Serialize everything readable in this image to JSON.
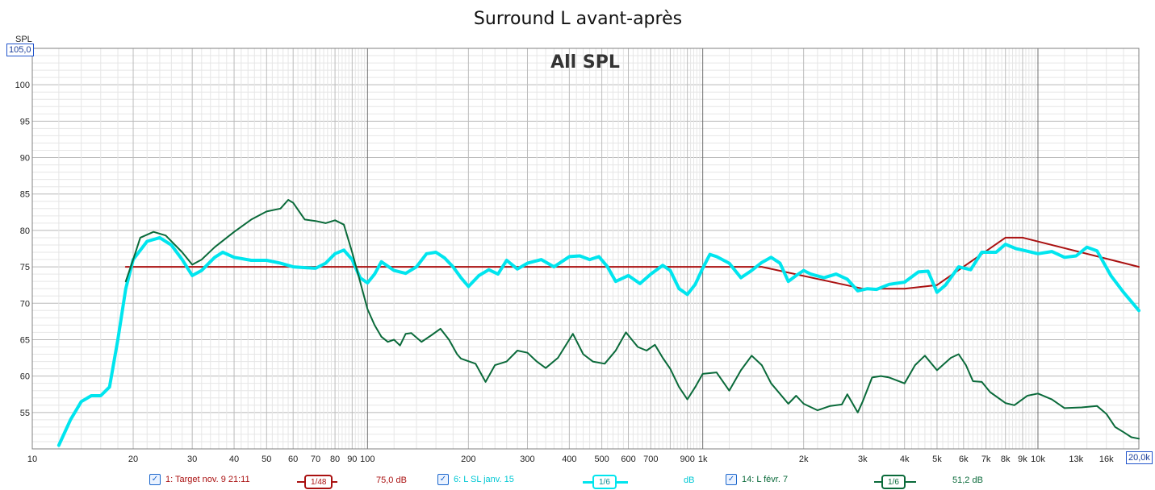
{
  "chart_data": {
    "type": "line",
    "title": "Surround L avant-après",
    "watermark": "All SPL",
    "ylabel": "SPL",
    "ylim": [
      50,
      105
    ],
    "xlim": [
      10,
      20000
    ],
    "xscale": "log",
    "y_top_label": "105,0",
    "x_end_label": "20,0k",
    "y_ticks": [
      {
        "value": 100,
        "label": "100"
      },
      {
        "value": 95,
        "label": "95"
      },
      {
        "value": 90,
        "label": "90"
      },
      {
        "value": 85,
        "label": "85"
      },
      {
        "value": 80,
        "label": "80"
      },
      {
        "value": 75,
        "label": "75"
      },
      {
        "value": 70,
        "label": "70"
      },
      {
        "value": 65,
        "label": "65"
      },
      {
        "value": 60,
        "label": "60"
      },
      {
        "value": 55,
        "label": "55"
      }
    ],
    "x_ticks": [
      {
        "value": 10,
        "label": "10"
      },
      {
        "value": 20,
        "label": "20"
      },
      {
        "value": 30,
        "label": "30"
      },
      {
        "value": 40,
        "label": "40"
      },
      {
        "value": 50,
        "label": "50"
      },
      {
        "value": 60,
        "label": "60"
      },
      {
        "value": 70,
        "label": "70"
      },
      {
        "value": 80,
        "label": "80"
      },
      {
        "value": 90,
        "label": "90"
      },
      {
        "value": 100,
        "label": "100"
      },
      {
        "value": 200,
        "label": "200"
      },
      {
        "value": 300,
        "label": "300"
      },
      {
        "value": 400,
        "label": "400"
      },
      {
        "value": 500,
        "label": "500"
      },
      {
        "value": 600,
        "label": "600"
      },
      {
        "value": 700,
        "label": "700"
      },
      {
        "value": 900,
        "label": "900"
      },
      {
        "value": 1000,
        "label": "1k"
      },
      {
        "value": 2000,
        "label": "2k"
      },
      {
        "value": 3000,
        "label": "3k"
      },
      {
        "value": 4000,
        "label": "4k"
      },
      {
        "value": 5000,
        "label": "5k"
      },
      {
        "value": 6000,
        "label": "6k"
      },
      {
        "value": 7000,
        "label": "7k"
      },
      {
        "value": 8000,
        "label": "8k"
      },
      {
        "value": 9000,
        "label": "9k"
      },
      {
        "value": 10000,
        "label": "10k"
      },
      {
        "value": 13000,
        "label": "13k"
      },
      {
        "value": 16000,
        "label": "16k"
      }
    ],
    "grid": true,
    "series": [
      {
        "name": "1: Target nov. 9 21:11",
        "color": "#aa1111",
        "smoothing": "1/48",
        "offset": "75,0 dB",
        "points": [
          [
            19,
            75
          ],
          [
            100,
            75
          ],
          [
            1500,
            75
          ],
          [
            3000,
            72
          ],
          [
            4000,
            72
          ],
          [
            5000,
            72.5
          ],
          [
            8000,
            79
          ],
          [
            9000,
            79
          ],
          [
            20000,
            75
          ]
        ]
      },
      {
        "name": "6: L SL janv. 15",
        "color": "#00e5ee",
        "smoothing": "1/6",
        "offset": "dB",
        "points": [
          [
            12,
            50.5
          ],
          [
            13,
            54
          ],
          [
            14,
            56.5
          ],
          [
            15,
            57.3
          ],
          [
            16,
            57.3
          ],
          [
            17,
            58.5
          ],
          [
            18,
            65
          ],
          [
            19,
            72
          ],
          [
            20,
            76
          ],
          [
            22,
            78.5
          ],
          [
            24,
            79
          ],
          [
            26,
            78
          ],
          [
            28,
            76
          ],
          [
            30,
            73.8
          ],
          [
            32,
            74.5
          ],
          [
            35,
            76.3
          ],
          [
            37,
            77
          ],
          [
            40,
            76.3
          ],
          [
            45,
            75.9
          ],
          [
            50,
            75.9
          ],
          [
            55,
            75.5
          ],
          [
            60,
            75
          ],
          [
            70,
            74.8
          ],
          [
            75,
            75.5
          ],
          [
            80,
            76.8
          ],
          [
            85,
            77.3
          ],
          [
            90,
            76
          ],
          [
            95,
            73.5
          ],
          [
            100,
            72.8
          ],
          [
            105,
            74
          ],
          [
            110,
            75.7
          ],
          [
            120,
            74.5
          ],
          [
            130,
            74.1
          ],
          [
            140,
            75
          ],
          [
            150,
            76.8
          ],
          [
            160,
            77
          ],
          [
            170,
            76.2
          ],
          [
            180,
            75
          ],
          [
            190,
            73.5
          ],
          [
            200,
            72.3
          ],
          [
            215,
            73.8
          ],
          [
            230,
            74.6
          ],
          [
            245,
            74
          ],
          [
            260,
            75.9
          ],
          [
            280,
            74.7
          ],
          [
            300,
            75.5
          ],
          [
            330,
            76
          ],
          [
            360,
            75
          ],
          [
            400,
            76.4
          ],
          [
            430,
            76.5
          ],
          [
            460,
            76
          ],
          [
            490,
            76.4
          ],
          [
            520,
            75
          ],
          [
            550,
            73
          ],
          [
            600,
            73.8
          ],
          [
            650,
            72.7
          ],
          [
            700,
            74
          ],
          [
            760,
            75.2
          ],
          [
            800,
            74.5
          ],
          [
            850,
            72
          ],
          [
            900,
            71.2
          ],
          [
            950,
            72.6
          ],
          [
            1000,
            74.8
          ],
          [
            1050,
            76.7
          ],
          [
            1100,
            76.4
          ],
          [
            1200,
            75.5
          ],
          [
            1300,
            73.5
          ],
          [
            1400,
            74.5
          ],
          [
            1500,
            75.6
          ],
          [
            1600,
            76.3
          ],
          [
            1700,
            75.5
          ],
          [
            1800,
            73
          ],
          [
            1900,
            73.8
          ],
          [
            2000,
            74.5
          ],
          [
            2100,
            74
          ],
          [
            2300,
            73.5
          ],
          [
            2500,
            74
          ],
          [
            2700,
            73.3
          ],
          [
            2900,
            71.7
          ],
          [
            3100,
            72
          ],
          [
            3300,
            71.9
          ],
          [
            3600,
            72.6
          ],
          [
            4000,
            72.9
          ],
          [
            4400,
            74.3
          ],
          [
            4700,
            74.4
          ],
          [
            5000,
            71.5
          ],
          [
            5300,
            72.5
          ],
          [
            5800,
            75
          ],
          [
            6300,
            74.6
          ],
          [
            6800,
            77
          ],
          [
            7500,
            77
          ],
          [
            8000,
            78.1
          ],
          [
            8600,
            77.5
          ],
          [
            9000,
            77.3
          ],
          [
            10000,
            76.8
          ],
          [
            11000,
            77.1
          ],
          [
            12000,
            76.3
          ],
          [
            13000,
            76.5
          ],
          [
            14000,
            77.7
          ],
          [
            15000,
            77.2
          ],
          [
            16500,
            73.8
          ],
          [
            18000,
            71.5
          ],
          [
            20000,
            69
          ]
        ]
      },
      {
        "name": "14: L févr. 7",
        "color": "#0a6a3a",
        "smoothing": "1/6",
        "offset": "51,2 dB",
        "points": [
          [
            19,
            73
          ],
          [
            20,
            76
          ],
          [
            21,
            79
          ],
          [
            23,
            79.8
          ],
          [
            25,
            79.3
          ],
          [
            28,
            77
          ],
          [
            30,
            75.3
          ],
          [
            32,
            76
          ],
          [
            35,
            77.7
          ],
          [
            40,
            79.8
          ],
          [
            45,
            81.5
          ],
          [
            50,
            82.6
          ],
          [
            55,
            83
          ],
          [
            58,
            84.2
          ],
          [
            60,
            83.8
          ],
          [
            65,
            81.5
          ],
          [
            70,
            81.3
          ],
          [
            75,
            81
          ],
          [
            80,
            81.4
          ],
          [
            85,
            80.8
          ],
          [
            90,
            77
          ],
          [
            95,
            73
          ],
          [
            100,
            69.2
          ],
          [
            105,
            67
          ],
          [
            110,
            65.4
          ],
          [
            115,
            64.7
          ],
          [
            120,
            65
          ],
          [
            125,
            64.2
          ],
          [
            130,
            65.8
          ],
          [
            135,
            65.9
          ],
          [
            145,
            64.7
          ],
          [
            155,
            65.6
          ],
          [
            165,
            66.5
          ],
          [
            175,
            65
          ],
          [
            185,
            63
          ],
          [
            190,
            62.4
          ],
          [
            210,
            61.7
          ],
          [
            225,
            59.2
          ],
          [
            240,
            61.5
          ],
          [
            260,
            62
          ],
          [
            280,
            63.5
          ],
          [
            300,
            63.2
          ],
          [
            320,
            62
          ],
          [
            340,
            61.1
          ],
          [
            370,
            62.5
          ],
          [
            410,
            65.8
          ],
          [
            440,
            63
          ],
          [
            470,
            62
          ],
          [
            510,
            61.7
          ],
          [
            550,
            63.5
          ],
          [
            590,
            66
          ],
          [
            640,
            64
          ],
          [
            680,
            63.5
          ],
          [
            720,
            64.3
          ],
          [
            760,
            62.5
          ],
          [
            800,
            61
          ],
          [
            850,
            58.5
          ],
          [
            900,
            56.8
          ],
          [
            950,
            58.5
          ],
          [
            1000,
            60.3
          ],
          [
            1100,
            60.5
          ],
          [
            1200,
            58
          ],
          [
            1300,
            60.8
          ],
          [
            1400,
            62.8
          ],
          [
            1500,
            61.5
          ],
          [
            1600,
            59
          ],
          [
            1800,
            56.2
          ],
          [
            1900,
            57.3
          ],
          [
            2000,
            56.2
          ],
          [
            2200,
            55.3
          ],
          [
            2400,
            55.9
          ],
          [
            2600,
            56.1
          ],
          [
            2700,
            57.5
          ],
          [
            2900,
            55
          ],
          [
            3000,
            56.5
          ],
          [
            3200,
            59.8
          ],
          [
            3400,
            60
          ],
          [
            3600,
            59.8
          ],
          [
            4000,
            59
          ],
          [
            4300,
            61.5
          ],
          [
            4600,
            62.8
          ],
          [
            5000,
            60.8
          ],
          [
            5500,
            62.5
          ],
          [
            5800,
            63
          ],
          [
            6100,
            61.5
          ],
          [
            6400,
            59.3
          ],
          [
            6800,
            59.2
          ],
          [
            7200,
            57.8
          ],
          [
            8000,
            56.3
          ],
          [
            8500,
            56
          ],
          [
            9300,
            57.3
          ],
          [
            10000,
            57.6
          ],
          [
            11000,
            56.8
          ],
          [
            12000,
            55.6
          ],
          [
            13500,
            55.7
          ],
          [
            15000,
            55.9
          ],
          [
            16000,
            54.8
          ],
          [
            17000,
            53
          ],
          [
            18000,
            52.3
          ],
          [
            19000,
            51.6
          ],
          [
            20000,
            51.4
          ]
        ]
      }
    ]
  }
}
